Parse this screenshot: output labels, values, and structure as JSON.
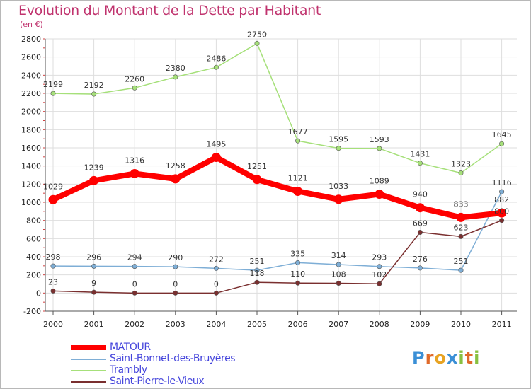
{
  "title": "Evolution du Montant de la Dette par Habitant",
  "subtitle": "(en €)",
  "logo": {
    "letters": [
      "P",
      "r",
      "o",
      "x",
      "i",
      "t",
      "i"
    ],
    "colors": [
      "#3a8fd6",
      "#e06a2a",
      "#e8a322",
      "#3a8fd6",
      "#88c040",
      "#e06a2a",
      "#88c040"
    ]
  },
  "chart_data": {
    "type": "line",
    "title": "Evolution du Montant de la Dette par Habitant",
    "ylabel": "(en €)",
    "xlabel": "",
    "x": [
      "2000",
      "2001",
      "2002",
      "2003",
      "2004",
      "2005",
      "2006",
      "2007",
      "2008",
      "2009",
      "2010",
      "2011"
    ],
    "ylim": [
      -200,
      2800
    ],
    "yticks": [
      "-200",
      "0",
      "200",
      "400",
      "600",
      "800",
      "1000",
      "1200",
      "1400",
      "1600",
      "1800",
      "2000",
      "2200",
      "2400",
      "2600",
      "2800"
    ],
    "grid": true,
    "legend": "bottom",
    "series": [
      {
        "name": "MATOUR",
        "color": "#ff0000",
        "values": [
          1029,
          1239,
          1316,
          1258,
          1495,
          1251,
          1121,
          1033,
          1089,
          940,
          833,
          882
        ],
        "labels": [
          "1029",
          "1239",
          "1316",
          "1258",
          "1495",
          "1251",
          "1121",
          "1033",
          "1089",
          "940",
          "833",
          "882"
        ]
      },
      {
        "name": "Saint-Bonnet-des-Bruyères",
        "color": "#7eaed6",
        "values": [
          298,
          296,
          294,
          290,
          272,
          251,
          335,
          314,
          293,
          276,
          251,
          1116
        ],
        "labels": [
          "298",
          "296",
          "294",
          "290",
          "272",
          "251",
          "335",
          "314",
          "293",
          "276",
          "251",
          "1116"
        ]
      },
      {
        "name": "Trambly",
        "color": "#a6e07a",
        "values": [
          2199,
          2192,
          2260,
          2380,
          2486,
          2750,
          1677,
          1595,
          1593,
          1431,
          1323,
          1645
        ],
        "labels": [
          "2199",
          "2192",
          "2260",
          "2380",
          "2486",
          "2750",
          "1677",
          "1595",
          "1593",
          "1431",
          "1323",
          "1645"
        ]
      },
      {
        "name": "Saint-Pierre-le-Vieux",
        "color": "#7a2f2f",
        "values": [
          23,
          9,
          0,
          0,
          0,
          118,
          110,
          108,
          102,
          669,
          623,
          800
        ],
        "labels": [
          "23",
          "9",
          "0",
          "0",
          "0",
          "118",
          "110",
          "108",
          "102",
          "669",
          "623",
          "800"
        ]
      }
    ]
  }
}
